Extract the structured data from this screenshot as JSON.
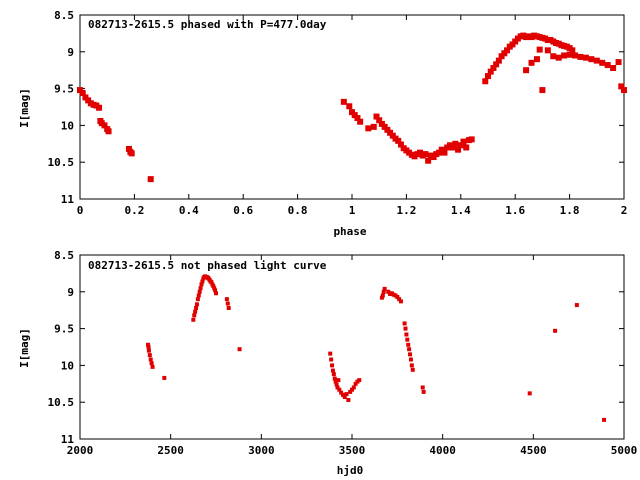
{
  "chart_data": [
    {
      "type": "scatter",
      "title": "082713-2615.5 phased with P=477.0day",
      "xlabel": "phase",
      "ylabel": "I[mag]",
      "xlim": [
        0,
        2
      ],
      "ylim": [
        8.5,
        11
      ],
      "y_inverted": true,
      "xticks": [
        "0",
        "0.2",
        "0.4",
        "0.6",
        "0.8",
        "1",
        "1.2",
        "1.4",
        "1.6",
        "1.8",
        "2"
      ],
      "yticks": [
        "8.5",
        "9",
        "9.5",
        "10",
        "10.5",
        "11"
      ],
      "grid": false,
      "color": "#e00000",
      "series": [
        {
          "points": [
            [
              0.0,
              9.52
            ],
            [
              0.01,
              9.56
            ],
            [
              0.02,
              9.62
            ],
            [
              0.03,
              9.66
            ],
            [
              0.04,
              9.7
            ],
            [
              0.05,
              9.72
            ],
            [
              0.06,
              9.73
            ],
            [
              0.07,
              9.76
            ],
            [
              0.075,
              9.94
            ],
            [
              0.08,
              9.97
            ],
            [
              0.09,
              10.0
            ],
            [
              0.1,
              10.05
            ],
            [
              0.105,
              10.08
            ],
            [
              0.18,
              10.32
            ],
            [
              0.185,
              10.36
            ],
            [
              0.19,
              10.38
            ],
            [
              0.26,
              10.73
            ],
            [
              0.97,
              9.68
            ],
            [
              0.99,
              9.74
            ],
            [
              1.0,
              9.82
            ],
            [
              1.01,
              9.86
            ],
            [
              1.02,
              9.9
            ],
            [
              1.03,
              9.95
            ],
            [
              1.06,
              10.04
            ],
            [
              1.08,
              10.02
            ],
            [
              1.09,
              9.88
            ],
            [
              1.1,
              9.93
            ],
            [
              1.11,
              9.98
            ],
            [
              1.12,
              10.02
            ],
            [
              1.13,
              10.06
            ],
            [
              1.14,
              10.1
            ],
            [
              1.15,
              10.14
            ],
            [
              1.16,
              10.18
            ],
            [
              1.17,
              10.21
            ],
            [
              1.18,
              10.26
            ],
            [
              1.19,
              10.31
            ],
            [
              1.2,
              10.34
            ],
            [
              1.21,
              10.37
            ],
            [
              1.22,
              10.4
            ],
            [
              1.23,
              10.42
            ],
            [
              1.24,
              10.39
            ],
            [
              1.25,
              10.37
            ],
            [
              1.26,
              10.41
            ],
            [
              1.27,
              10.39
            ],
            [
              1.28,
              10.48
            ],
            [
              1.29,
              10.41
            ],
            [
              1.3,
              10.43
            ],
            [
              1.31,
              10.39
            ],
            [
              1.32,
              10.37
            ],
            [
              1.33,
              10.33
            ],
            [
              1.34,
              10.37
            ],
            [
              1.35,
              10.3
            ],
            [
              1.36,
              10.27
            ],
            [
              1.37,
              10.3
            ],
            [
              1.38,
              10.25
            ],
            [
              1.39,
              10.33
            ],
            [
              1.4,
              10.27
            ],
            [
              1.41,
              10.22
            ],
            [
              1.42,
              10.3
            ],
            [
              1.43,
              10.2
            ],
            [
              1.44,
              10.19
            ],
            [
              1.49,
              9.4
            ],
            [
              1.5,
              9.33
            ],
            [
              1.51,
              9.27
            ],
            [
              1.52,
              9.22
            ],
            [
              1.53,
              9.17
            ],
            [
              1.54,
              9.12
            ],
            [
              1.55,
              9.06
            ],
            [
              1.56,
              9.02
            ],
            [
              1.57,
              8.98
            ],
            [
              1.58,
              8.93
            ],
            [
              1.59,
              8.9
            ],
            [
              1.6,
              8.86
            ],
            [
              1.61,
              8.82
            ],
            [
              1.62,
              8.79
            ],
            [
              1.63,
              8.78
            ],
            [
              1.64,
              8.8
            ],
            [
              1.65,
              8.79
            ],
            [
              1.66,
              8.8
            ],
            [
              1.67,
              8.78
            ],
            [
              1.68,
              8.79
            ],
            [
              1.69,
              8.8
            ],
            [
              1.7,
              8.81
            ],
            [
              1.71,
              8.82
            ],
            [
              1.72,
              8.84
            ],
            [
              1.73,
              8.84
            ],
            [
              1.74,
              8.86
            ],
            [
              1.75,
              8.88
            ],
            [
              1.76,
              8.89
            ],
            [
              1.77,
              8.91
            ],
            [
              1.78,
              8.92
            ],
            [
              1.79,
              8.93
            ],
            [
              1.8,
              8.95
            ],
            [
              1.81,
              8.98
            ],
            [
              1.64,
              9.25
            ],
            [
              1.66,
              9.15
            ],
            [
              1.68,
              9.1
            ],
            [
              1.69,
              8.97
            ],
            [
              1.7,
              9.52
            ],
            [
              1.72,
              8.98
            ],
            [
              1.74,
              9.06
            ],
            [
              1.76,
              9.08
            ],
            [
              1.78,
              9.05
            ],
            [
              1.8,
              9.04
            ],
            [
              1.82,
              9.05
            ],
            [
              1.84,
              9.07
            ],
            [
              1.86,
              9.08
            ],
            [
              1.88,
              9.1
            ],
            [
              1.9,
              9.12
            ],
            [
              1.92,
              9.15
            ],
            [
              1.94,
              9.18
            ],
            [
              1.96,
              9.22
            ],
            [
              1.98,
              9.14
            ],
            [
              1.99,
              9.47
            ],
            [
              2.0,
              9.52
            ]
          ]
        }
      ]
    },
    {
      "type": "scatter",
      "title": "082713-2615.5 not phased light curve",
      "xlabel": "hjd0",
      "ylabel": "I[mag]",
      "xlim": [
        2000,
        5000
      ],
      "ylim": [
        8.5,
        11
      ],
      "y_inverted": true,
      "xticks": [
        "2000",
        "2500",
        "3000",
        "3500",
        "4000",
        "4500",
        "5000"
      ],
      "yticks": [
        "8.5",
        "9",
        "9.5",
        "10",
        "10.5",
        "11"
      ],
      "grid": false,
      "color": "#e00000",
      "series": [
        {
          "points": [
            [
              2375,
              9.72
            ],
            [
              2378,
              9.75
            ],
            [
              2380,
              9.8
            ],
            [
              2385,
              9.86
            ],
            [
              2390,
              9.92
            ],
            [
              2395,
              9.97
            ],
            [
              2400,
              10.02
            ],
            [
              2465,
              10.17
            ],
            [
              2625,
              9.38
            ],
            [
              2630,
              9.32
            ],
            [
              2635,
              9.27
            ],
            [
              2640,
              9.22
            ],
            [
              2645,
              9.17
            ],
            [
              2650,
              9.1
            ],
            [
              2655,
              9.05
            ],
            [
              2660,
              9.0
            ],
            [
              2665,
              8.95
            ],
            [
              2670,
              8.9
            ],
            [
              2675,
              8.86
            ],
            [
              2680,
              8.82
            ],
            [
              2685,
              8.8
            ],
            [
              2690,
              8.79
            ],
            [
              2695,
              8.8
            ],
            [
              2700,
              8.8
            ],
            [
              2705,
              8.81
            ],
            [
              2710,
              8.82
            ],
            [
              2715,
              8.84
            ],
            [
              2720,
              8.86
            ],
            [
              2725,
              8.87
            ],
            [
              2730,
              8.9
            ],
            [
              2735,
              8.92
            ],
            [
              2740,
              8.95
            ],
            [
              2745,
              8.98
            ],
            [
              2750,
              9.02
            ],
            [
              2810,
              9.1
            ],
            [
              2815,
              9.16
            ],
            [
              2820,
              9.22
            ],
            [
              2880,
              9.78
            ],
            [
              3380,
              9.84
            ],
            [
              3385,
              9.92
            ],
            [
              3390,
              10.0
            ],
            [
              3395,
              10.07
            ],
            [
              3400,
              10.12
            ],
            [
              3405,
              10.18
            ],
            [
              3410,
              10.22
            ],
            [
              3415,
              10.26
            ],
            [
              3420,
              10.3
            ],
            [
              3425,
              10.2
            ],
            [
              3430,
              10.33
            ],
            [
              3440,
              10.37
            ],
            [
              3450,
              10.4
            ],
            [
              3460,
              10.43
            ],
            [
              3470,
              10.39
            ],
            [
              3480,
              10.47
            ],
            [
              3490,
              10.36
            ],
            [
              3500,
              10.33
            ],
            [
              3510,
              10.3
            ],
            [
              3520,
              10.25
            ],
            [
              3530,
              10.22
            ],
            [
              3540,
              10.2
            ],
            [
              3665,
              9.08
            ],
            [
              3670,
              9.05
            ],
            [
              3675,
              9.0
            ],
            [
              3680,
              8.96
            ],
            [
              3700,
              9.0
            ],
            [
              3710,
              9.03
            ],
            [
              3720,
              9.02
            ],
            [
              3730,
              9.04
            ],
            [
              3740,
              9.05
            ],
            [
              3750,
              9.07
            ],
            [
              3760,
              9.1
            ],
            [
              3770,
              9.13
            ],
            [
              3790,
              9.43
            ],
            [
              3795,
              9.5
            ],
            [
              3800,
              9.58
            ],
            [
              3805,
              9.65
            ],
            [
              3810,
              9.72
            ],
            [
              3815,
              9.78
            ],
            [
              3820,
              9.85
            ],
            [
              3825,
              9.92
            ],
            [
              3830,
              10.0
            ],
            [
              3835,
              10.06
            ],
            [
              3890,
              10.3
            ],
            [
              3895,
              10.36
            ],
            [
              4480,
              10.38
            ],
            [
              4620,
              9.53
            ],
            [
              4740,
              9.18
            ],
            [
              4890,
              10.74
            ]
          ]
        }
      ]
    }
  ]
}
